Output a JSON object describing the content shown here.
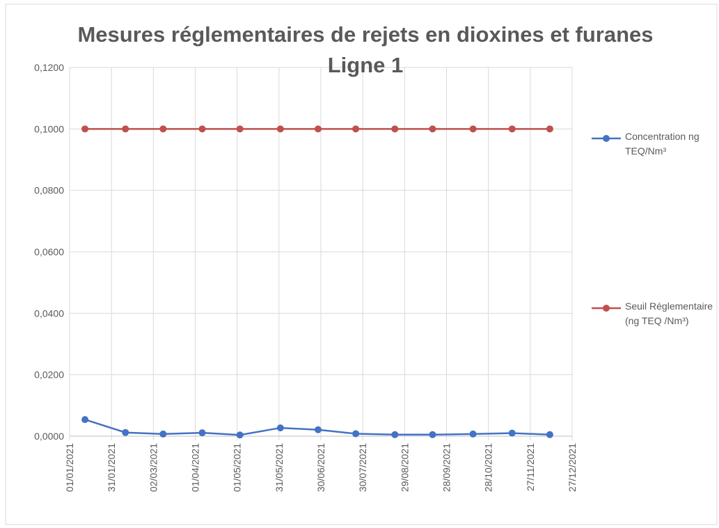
{
  "chart_data": {
    "type": "line",
    "title": "Mesures réglementaires de rejets en dioxines et furanes Ligne 1",
    "x": [
      "2021-01-12",
      "2021-02-10",
      "2021-03-09",
      "2021-04-06",
      "2021-05-03",
      "2021-06-01",
      "2021-06-28",
      "2021-07-25",
      "2021-08-22",
      "2021-09-18",
      "2021-10-17",
      "2021-11-14",
      "2021-12-11"
    ],
    "series": [
      {
        "name": "Concentration ng TEQ/Nm³",
        "color": "#4472c4",
        "values": [
          0.0054,
          0.0012,
          0.0007,
          0.0011,
          0.0004,
          0.0027,
          0.0021,
          0.0008,
          0.0005,
          0.0005,
          0.0007,
          0.001,
          0.0005
        ]
      },
      {
        "name": "Seuil Réglementaire (ng TEQ /Nm³)",
        "color": "#c0504d",
        "values": [
          0.1,
          0.1,
          0.1,
          0.1,
          0.1,
          0.1,
          0.1,
          0.1,
          0.1,
          0.1,
          0.1,
          0.1,
          0.1
        ]
      }
    ],
    "xlim": [
      "2021-01-01",
      "2021-12-27"
    ],
    "xticks": [
      {
        "value": "2021-01-01",
        "label": "01/01/2021"
      },
      {
        "value": "2021-01-31",
        "label": "31/01/2021"
      },
      {
        "value": "2021-03-02",
        "label": "02/03/2021"
      },
      {
        "value": "2021-04-01",
        "label": "01/04/2021"
      },
      {
        "value": "2021-05-01",
        "label": "01/05/2021"
      },
      {
        "value": "2021-05-31",
        "label": "31/05/2021"
      },
      {
        "value": "2021-06-30",
        "label": "30/06/2021"
      },
      {
        "value": "2021-07-30",
        "label": "30/07/2021"
      },
      {
        "value": "2021-08-29",
        "label": "29/08/2021"
      },
      {
        "value": "2021-09-28",
        "label": "28/09/2021"
      },
      {
        "value": "2021-10-28",
        "label": "28/10/2021"
      },
      {
        "value": "2021-11-27",
        "label": "27/11/2021"
      },
      {
        "value": "2021-12-27",
        "label": "27/12/2021"
      }
    ],
    "ylim": [
      0,
      0.12
    ],
    "yticks": [
      {
        "value": 0,
        "label": "0,0000"
      },
      {
        "value": 0.02,
        "label": "0,0200"
      },
      {
        "value": 0.04,
        "label": "0,0400"
      },
      {
        "value": 0.06,
        "label": "0,0600"
      },
      {
        "value": 0.08,
        "label": "0,0800"
      },
      {
        "value": 0.1,
        "label": "0,1000"
      },
      {
        "value": 0.12,
        "label": "0,1200"
      }
    ],
    "grid": true,
    "legend": "right"
  }
}
